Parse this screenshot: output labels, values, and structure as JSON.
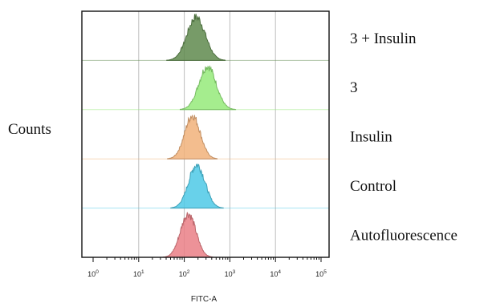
{
  "chart_data": {
    "type": "area",
    "xlabel": "FITC-A",
    "ylabel": "Counts",
    "x_scale": "log",
    "xlim": [
      1,
      100000
    ],
    "x_ticks": [
      1,
      10,
      100,
      1000,
      10000,
      100000
    ],
    "x_tick_labels": [
      {
        "base": "10",
        "exp": "0"
      },
      {
        "base": "10",
        "exp": "1"
      },
      {
        "base": "10",
        "exp": "2"
      },
      {
        "base": "10",
        "exp": "3"
      },
      {
        "base": "10",
        "exp": "4"
      },
      {
        "base": "10",
        "exp": "5"
      }
    ],
    "grid": true,
    "series": [
      {
        "name": "3 + Insulin",
        "color": "#5f8a4e",
        "peak": 180,
        "spread": 0.2,
        "skew": 0.03
      },
      {
        "name": "3",
        "color": "#95ea7a",
        "peak": 330,
        "spread": 0.19,
        "skew": -0.05
      },
      {
        "name": "Insulin",
        "color": "#f1b27a",
        "peak": 150,
        "spread": 0.17,
        "skew": 0.02
      },
      {
        "name": "Control",
        "color": "#4dc9e6",
        "peak": 190,
        "spread": 0.18,
        "skew": -0.02
      },
      {
        "name": "Autofluorescence",
        "color": "#ea7f86",
        "peak": 120,
        "spread": 0.17,
        "skew": 0.04
      }
    ]
  }
}
